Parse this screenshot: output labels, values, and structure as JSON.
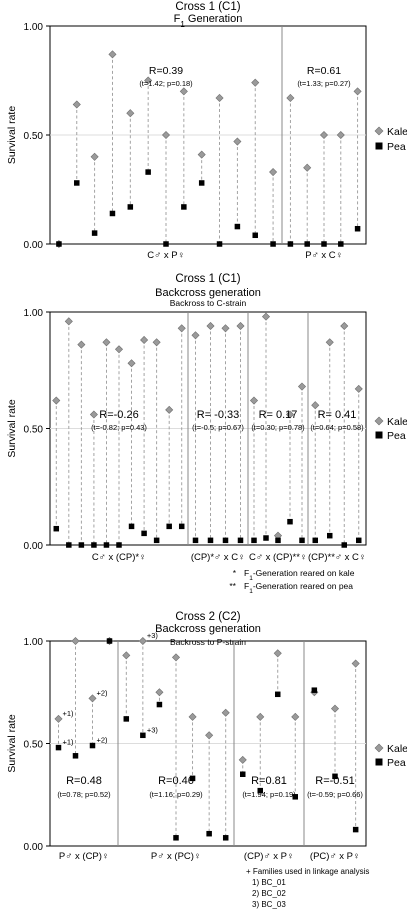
{
  "colors": {
    "kale": "#9a9a9a",
    "pea": "#000000",
    "connector": "#9a9a9a",
    "axis": "#000000",
    "divider": "#888888",
    "midline": "#dddddd"
  },
  "legend": {
    "kale": "Kale",
    "pea": "Pea"
  },
  "chart_data": [
    {
      "type": "scatter",
      "title": "Cross 1 (C1)",
      "subtitle_prefix": "F",
      "subtitle_sub": "1",
      "subtitle_suffix": " Generation",
      "ylabel": "Survival rate",
      "ylim": [
        0,
        1
      ],
      "yticks": [
        "0.00",
        "0.50",
        "1.00"
      ],
      "grid": false,
      "legend_position": "right",
      "series": [
        {
          "name": "Kale"
        },
        {
          "name": "Pea"
        }
      ],
      "groups": [
        {
          "label": "C♂ x P♀",
          "R": "R=0.39",
          "stat": "(t=1.42; p=0.18)",
          "kale": [
            0.0,
            0.64,
            0.4,
            0.87,
            0.6,
            0.75,
            0.5,
            0.7,
            0.41,
            0.67,
            0.47,
            0.74,
            0.33
          ],
          "pea": [
            0.0,
            0.28,
            0.05,
            0.14,
            0.17,
            0.33,
            0.0,
            0.17,
            0.28,
            0.0,
            0.08,
            0.04,
            0.0
          ]
        },
        {
          "label": "P♂ x C♀",
          "R": "R=0.61",
          "stat": "(t=1.33; p=0.27)",
          "kale": [
            0.67,
            0.35,
            0.5,
            0.5,
            0.7
          ],
          "pea": [
            0.0,
            0.0,
            0.0,
            0.0,
            0.07
          ]
        }
      ]
    },
    {
      "type": "scatter",
      "title": "Cross 1 (C1)",
      "subtitle": "Backcross generation",
      "subtitle2": "Backross to C-strain",
      "ylabel": "Survival rate",
      "ylim": [
        0,
        1
      ],
      "yticks": [
        "0.00",
        "0.50",
        "1.00"
      ],
      "grid": false,
      "legend_position": "right",
      "series": [
        {
          "name": "Kale"
        },
        {
          "name": "Pea"
        }
      ],
      "groups": [
        {
          "label": "C♂ x (CP)*♀",
          "R": "R=-0.26",
          "stat": "(t=-0.82; p=0.43)",
          "kale": [
            0.62,
            0.96,
            0.86,
            0.56,
            0.87,
            0.84,
            0.78,
            0.88,
            0.87,
            0.58,
            0.93
          ],
          "pea": [
            0.07,
            0.0,
            0.0,
            0.0,
            0.0,
            0.0,
            0.08,
            0.05,
            0.02,
            0.08,
            0.08
          ]
        },
        {
          "label": "(CP)*♂ x C♀",
          "R": "R= -0.33",
          "stat": "(t=-0.5; p=0.67)",
          "kale": [
            0.9,
            0.94,
            0.93,
            0.94
          ],
          "pea": [
            0.02,
            0.02,
            0.02,
            0.02
          ]
        },
        {
          "label": "C♂ x (CP)**♀",
          "R": "R= 0.17",
          "stat": "(t=0.30; p=0.78)",
          "kale": [
            0.62,
            0.98,
            0.04,
            0.56,
            0.68
          ],
          "pea": [
            0.02,
            0.03,
            0.02,
            0.1,
            0.02
          ]
        },
        {
          "label": "(CP)**♂ x C♀",
          "R": "R= 0.41",
          "stat": "(t=0.64; p=0.58)",
          "kale": [
            0.6,
            0.87,
            0.94,
            0.67
          ],
          "pea": [
            0.02,
            0.04,
            0.0,
            0.02
          ]
        }
      ],
      "footnotes": [
        {
          "mark": "*",
          "prefix": "F",
          "sub": "1",
          "text": "-Generation reared on kale"
        },
        {
          "mark": "**",
          "prefix": "F",
          "sub": "1",
          "text": "-Generation reared on pea"
        }
      ]
    },
    {
      "type": "scatter",
      "title": "Cross 2 (C2)",
      "subtitle": "Backcross generation",
      "subtitle2": "Backross to P-strain",
      "ylabel": "Survival rate",
      "ylim": [
        0,
        1
      ],
      "yticks": [
        "0.00",
        "0.50",
        "1.00"
      ],
      "grid": false,
      "legend_position": "right",
      "series": [
        {
          "name": "Kale"
        },
        {
          "name": "Pea"
        }
      ],
      "groups": [
        {
          "label": "P♂ x (CP)♀",
          "R": "R=0.48",
          "stat": "(t=0.78; p=0.52)",
          "kale": [
            0.62,
            1.0,
            0.72,
            1.0
          ],
          "pea": [
            0.48,
            0.44,
            0.49,
            1.0
          ],
          "kale_marks": [
            "+1)",
            "",
            "+2)",
            ""
          ],
          "pea_marks": [
            "+1)",
            "",
            "+2)",
            ""
          ]
        },
        {
          "label": "P♂ x (PC)♀",
          "R": "R=0.46",
          "stat": "(t=1.16; p=0.29)",
          "kale": [
            0.93,
            1.0,
            0.75,
            0.92,
            0.63,
            0.54,
            0.65
          ],
          "pea": [
            0.62,
            0.54,
            0.69,
            0.04,
            0.33,
            0.06,
            0.04
          ],
          "kale_marks": [
            "",
            "+3)",
            "",
            "",
            "",
            "",
            ""
          ],
          "pea_marks": [
            "",
            "+3)",
            "",
            "",
            "",
            "",
            ""
          ]
        },
        {
          "label": "(CP)♂ x P♀",
          "R": "R=0.81",
          "stat": "(t=1.94; p=0.19)",
          "kale": [
            0.42,
            0.63,
            0.94,
            0.63
          ],
          "pea": [
            0.35,
            0.27,
            0.74,
            0.24
          ]
        },
        {
          "label": "(PC)♂ x P♀",
          "R": "R=-0.51",
          "stat": "(t=-0.59; p=0.66)",
          "kale": [
            0.75,
            0.67,
            0.89
          ],
          "pea": [
            0.76,
            0.34,
            0.08
          ]
        }
      ],
      "footnotes": [
        {
          "text": "+ Families used in linkage analysis"
        },
        {
          "text": "1)  BC_01"
        },
        {
          "text": "2)  BC_02"
        },
        {
          "text": "3)  BC_03"
        }
      ]
    }
  ]
}
